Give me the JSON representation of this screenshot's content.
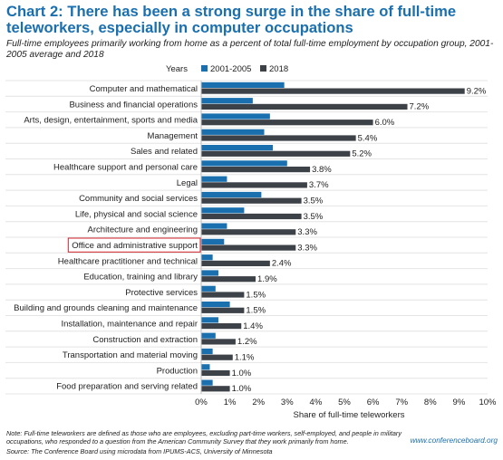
{
  "chart_data": {
    "type": "bar",
    "orientation": "horizontal",
    "title": "Chart 2: There has been a strong surge in the share of full-time teleworkers, especially in computer occupations",
    "subtitle": "Full-time employees primarily working from home as a percent of total full-time employment by occupation group, 2001-2005 average and 2018",
    "legend_title": "Years",
    "legend_position": "top",
    "xlabel": "Share of full-time teleworkers",
    "xlim": [
      0,
      10
    ],
    "xticks": [
      "0%",
      "1%",
      "2%",
      "3%",
      "4%",
      "5%",
      "6%",
      "7%",
      "8%",
      "9%",
      "10%"
    ],
    "grid": "horizontal-separators",
    "highlighted_category": "Office and administrative support",
    "categories": [
      "Computer and mathematical",
      "Business and financial operations",
      "Arts, design, entertainment, sports and media",
      "Management",
      "Sales and related",
      "Healthcare support and personal care",
      "Legal",
      "Community and social services",
      "Life, physical and social science",
      "Architecture and engineering",
      "Office and administrative support",
      "Healthcare practitioner and technical",
      "Education, training and library",
      "Protective services",
      "Building and grounds cleaning and maintenance",
      "Installation, maintenance and repair",
      "Construction and extraction",
      "Transportation and material moving",
      "Production",
      "Food preparation and serving related"
    ],
    "series": [
      {
        "name": "2001-2005",
        "color": "#1a6fae",
        "values": [
          2.9,
          1.8,
          2.4,
          2.2,
          2.5,
          3.0,
          0.9,
          2.1,
          1.5,
          0.9,
          0.8,
          0.4,
          0.6,
          0.5,
          1.0,
          0.6,
          0.5,
          0.4,
          0.3,
          0.4
        ],
        "labels": []
      },
      {
        "name": "2018",
        "color": "#3d4249",
        "values": [
          9.2,
          7.2,
          6.0,
          5.4,
          5.2,
          3.8,
          3.7,
          3.5,
          3.5,
          3.3,
          3.3,
          2.4,
          1.9,
          1.5,
          1.5,
          1.4,
          1.2,
          1.1,
          1.0,
          1.0
        ],
        "labels": [
          "9.2%",
          "7.2%",
          "6.0%",
          "5.4%",
          "5.2%",
          "3.8%",
          "3.7%",
          "3.5%",
          "3.5%",
          "3.3%",
          "3.3%",
          "2.4%",
          "1.9%",
          "1.5%",
          "1.5%",
          "1.4%",
          "1.2%",
          "1.1%",
          "1.0%",
          "1.0%"
        ]
      }
    ]
  },
  "footer": {
    "note": "Note: Full-time teleworkers are defined as those who are employees, excluding part-time workers, self-employed, and people in military occupations, who responded to a question from the American Community Survey that they work primarily from home.",
    "source": "Source: The Conference Board using microdata from IPUMS-ACS, University of Minnesota",
    "website": "www.conferenceboard.org"
  }
}
